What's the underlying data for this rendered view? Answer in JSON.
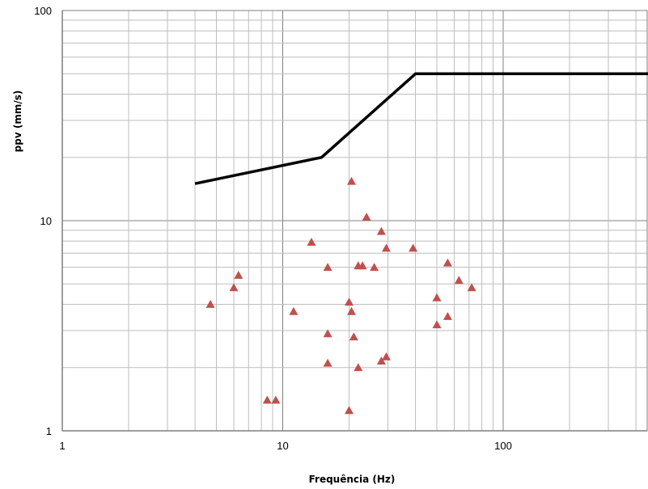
{
  "chart_data": {
    "type": "scatter",
    "title": "",
    "xlabel": "Frequência (Hz)",
    "ylabel": "ppv (mm/s)",
    "x_scale": "log",
    "y_scale": "log",
    "xlim": [
      1,
      500
    ],
    "ylim": [
      1,
      100
    ],
    "grid": true,
    "legend": "none",
    "x_ticks": [
      1,
      10,
      100
    ],
    "y_ticks": [
      1,
      10,
      100
    ],
    "x_tick_labels": [
      "1",
      "10",
      "100"
    ],
    "y_tick_labels": [
      "1",
      "10",
      "100"
    ],
    "series": [
      {
        "type": "line",
        "color": "#000000",
        "x": [
          4,
          15,
          40,
          500
        ],
        "y": [
          15,
          20,
          50,
          50
        ]
      },
      {
        "type": "scatter",
        "color": "#c0504d",
        "marker": "triangle",
        "x": [
          4.7,
          6.0,
          6.3,
          8.5,
          9.3,
          11.2,
          13.5,
          16.0,
          16.0,
          16.0,
          20.0,
          20.0,
          20.5,
          20.5,
          21.0,
          22.0,
          22.0,
          23.0,
          24.0,
          26.0,
          28.0,
          28.0,
          29.5,
          29.5,
          39.0,
          50.0,
          50.0,
          56.0,
          56.0,
          63.0,
          72.0
        ],
        "y": [
          4.0,
          4.8,
          5.5,
          1.4,
          1.4,
          3.7,
          7.9,
          6.0,
          2.9,
          2.1,
          1.25,
          4.1,
          15.4,
          3.7,
          2.8,
          2.0,
          6.1,
          6.1,
          10.4,
          6.0,
          2.15,
          8.9,
          2.25,
          7.4,
          7.4,
          4.3,
          3.2,
          6.3,
          3.5,
          5.2,
          4.8
        ]
      }
    ]
  }
}
